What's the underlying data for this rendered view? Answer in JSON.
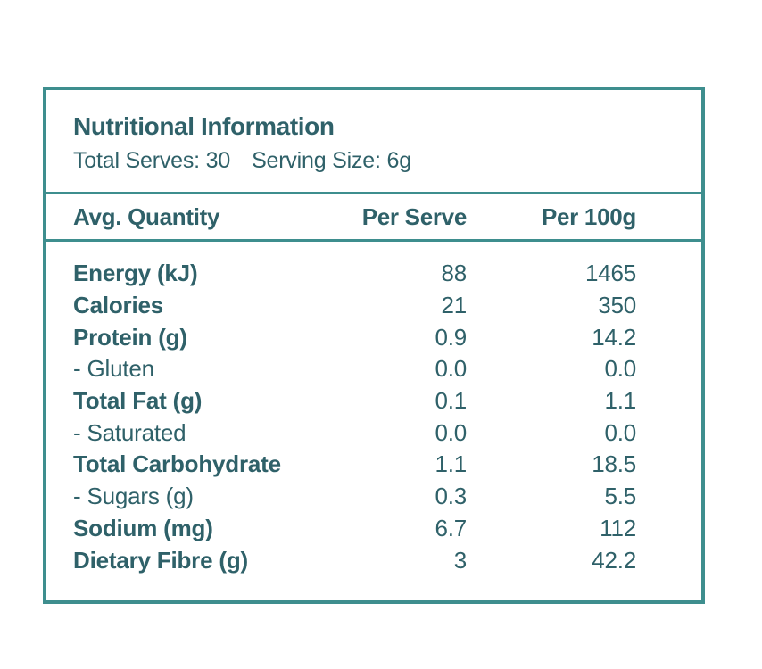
{
  "panel": {
    "title": "Nutritional Information",
    "total_serves": "Total Serves: 30",
    "serving_size": "Serving Size: 6g"
  },
  "columns": {
    "label": "Avg. Quantity",
    "per_serve": "Per Serve",
    "per_100g": "Per 100g"
  },
  "rows": [
    {
      "label": "Energy (kJ)",
      "per_serve": "88",
      "per_100g": "1465",
      "style": "main"
    },
    {
      "label": "Calories",
      "per_serve": "21",
      "per_100g": "350",
      "style": "main"
    },
    {
      "label": "Protein (g)",
      "per_serve": "0.9",
      "per_100g": "14.2",
      "style": "main"
    },
    {
      "label": "- Gluten",
      "per_serve": "0.0",
      "per_100g": "0.0",
      "style": "sub"
    },
    {
      "label": "Total Fat (g)",
      "per_serve": "0.1",
      "per_100g": "1.1",
      "style": "main"
    },
    {
      "label": "- Saturated",
      "per_serve": "0.0",
      "per_100g": "0.0",
      "style": "sub"
    },
    {
      "label": "Total Carbohydrate",
      "per_serve": "1.1",
      "per_100g": "18.5",
      "style": "main"
    },
    {
      "label": "- Sugars (g)",
      "per_serve": "0.3",
      "per_100g": "5.5",
      "style": "sub"
    },
    {
      "label": "Sodium (mg)",
      "per_serve": "6.7",
      "per_100g": "112",
      "style": "main"
    },
    {
      "label": "Dietary Fibre (g)",
      "per_serve": "3",
      "per_100g": "42.2",
      "style": "main"
    }
  ],
  "colors": {
    "text": "#2f6169",
    "border": "#3e8e8e",
    "background": "#ffffff"
  }
}
